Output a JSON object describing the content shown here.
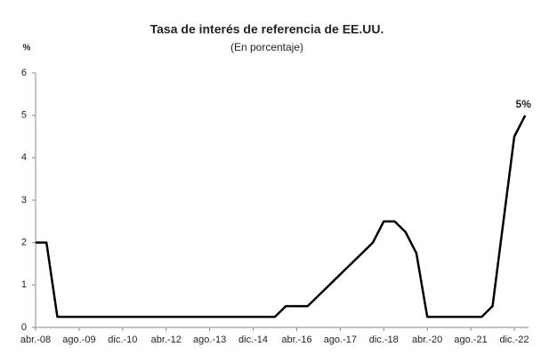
{
  "chart_data": {
    "type": "line",
    "title": "Tasa de interés de referencia de EE.UU.",
    "subtitle": "(En porcentaje)",
    "y_label": "%",
    "categories": [
      "abr.-08",
      null,
      null,
      null,
      "ago.-09",
      null,
      null,
      null,
      "dic.-10",
      null,
      null,
      null,
      "abr.-12",
      null,
      null,
      null,
      "ago.-13",
      null,
      null,
      null,
      "dic.-14",
      null,
      null,
      null,
      "abr.-16",
      null,
      null,
      null,
      "ago.-17",
      null,
      null,
      null,
      "dic.-18",
      null,
      null,
      null,
      "abr.-20",
      null,
      null,
      null,
      "ago.-21",
      null,
      null,
      null,
      "dic.-22",
      null
    ],
    "values": [
      2,
      2,
      0.25,
      0.25,
      0.25,
      0.25,
      0.25,
      0.25,
      0.25,
      0.25,
      0.25,
      0.25,
      0.25,
      0.25,
      0.25,
      0.25,
      0.25,
      0.25,
      0.25,
      0.25,
      0.25,
      0.25,
      0.25,
      0.5,
      0.5,
      0.5,
      0.75,
      1,
      1.25,
      1.5,
      1.75,
      2,
      2.5,
      2.5,
      2.25,
      1.75,
      0.25,
      0.25,
      0.25,
      0.25,
      0.25,
      0.25,
      0.5,
      2.5,
      4.5,
      5
    ],
    "value_labels": [
      null,
      null,
      null,
      null,
      null,
      null,
      null,
      null,
      null,
      null,
      null,
      null,
      null,
      null,
      null,
      null,
      null,
      null,
      null,
      null,
      null,
      null,
      null,
      null,
      null,
      null,
      null,
      null,
      null,
      null,
      null,
      null,
      null,
      null,
      null,
      null,
      null,
      null,
      null,
      null,
      null,
      null,
      null,
      null,
      null,
      "5%"
    ],
    "color": "#000000",
    "ylim": [
      0,
      6
    ],
    "yticks": [
      0,
      1,
      2,
      3,
      4,
      5,
      6
    ],
    "grid": false
  }
}
